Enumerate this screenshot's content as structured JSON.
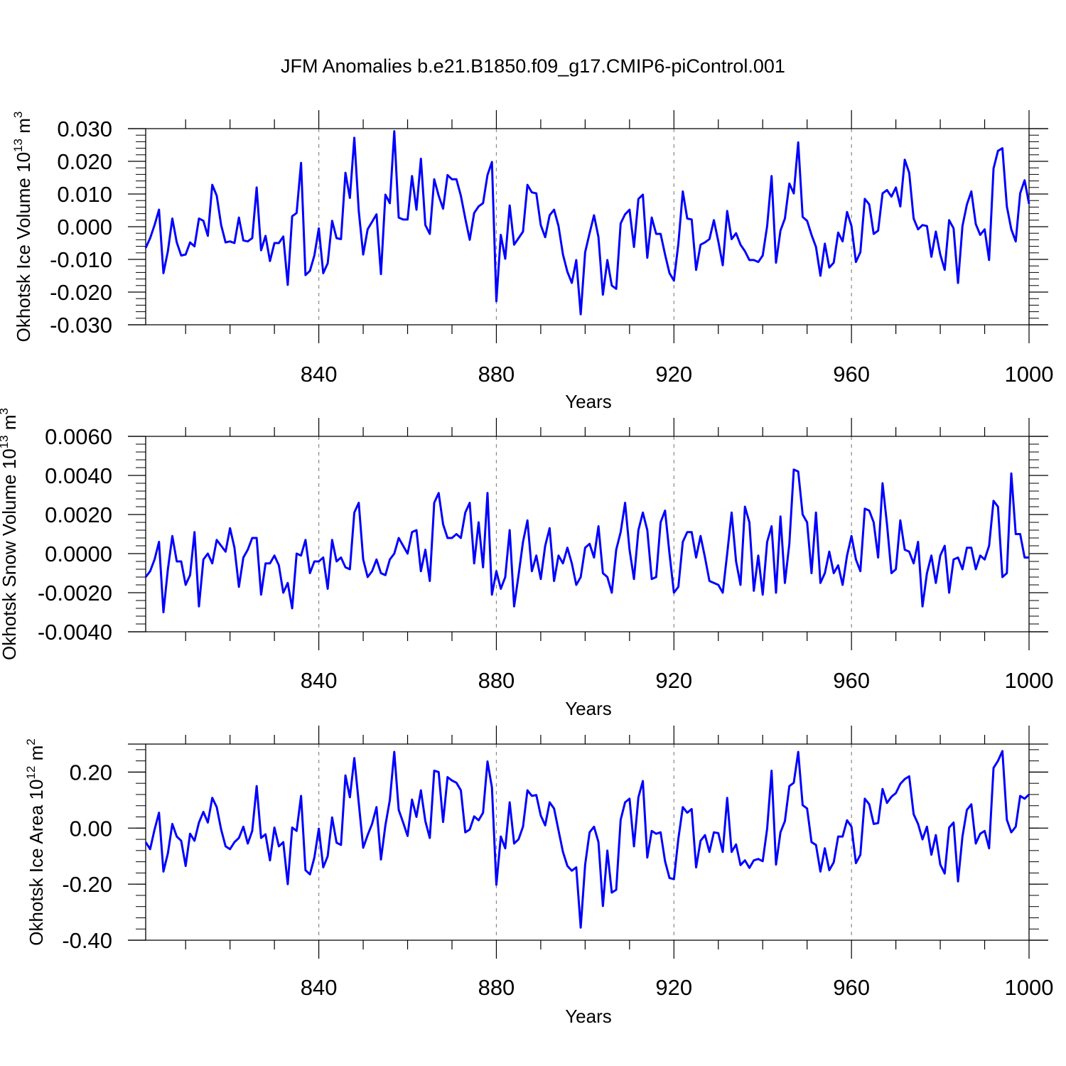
{
  "title": "JFM Anomalies b.e21.B1850.f09_g17.CMIP6-piControl.001",
  "series_color": "#0000ff",
  "chart_data": [
    {
      "type": "line",
      "title": "JFM Anomalies b.e21.B1850.f09_g17.CMIP6-piControl.001",
      "xlabel": "Years",
      "ylabel": "Okhotsk Ice Volume 10",
      "ylabel_sup": "13",
      "ylabel_unit": "m",
      "ylabel_unit_sup": "3",
      "xlim": [
        801,
        1000
      ],
      "ylim": [
        -0.03,
        0.03
      ],
      "xticks": [
        840,
        880,
        920,
        960,
        1000
      ],
      "yticks": [
        -0.03,
        -0.02,
        -0.01,
        0.0,
        0.01,
        0.02,
        0.03
      ],
      "ytick_labels": [
        "-0.030",
        "-0.020",
        "-0.010",
        "0.000",
        "0.010",
        "0.020",
        "0.030"
      ],
      "x_start": 801,
      "values": [
        -0.0065,
        -0.0035,
        0.0005,
        0.0052,
        -0.0142,
        -0.0075,
        0.0025,
        -0.0048,
        -0.0088,
        -0.0085,
        -0.0048,
        -0.006,
        0.0025,
        0.0018,
        -0.0028,
        0.0128,
        0.0095,
        0.0005,
        -0.0048,
        -0.0045,
        -0.005,
        0.0028,
        -0.0042,
        -0.0045,
        -0.0035,
        0.012,
        -0.0072,
        -0.0028,
        -0.0105,
        -0.005,
        -0.005,
        -0.003,
        -0.0178,
        0.0032,
        0.0042,
        0.0195,
        -0.0148,
        -0.0135,
        -0.0088,
        -0.0005,
        -0.0142,
        -0.0112,
        0.0018,
        -0.0035,
        -0.0038,
        0.0165,
        0.0088,
        0.0272,
        0.0048,
        -0.0085,
        -0.0008,
        0.0015,
        0.0038,
        -0.0145,
        0.0098,
        0.0072,
        0.0292,
        0.0028,
        0.0022,
        0.0022,
        0.0155,
        0.0052,
        0.0208,
        0.0005,
        -0.0022,
        0.0145,
        0.0095,
        0.0055,
        0.0158,
        0.0145,
        0.0145,
        0.0095,
        0.0025,
        -0.004,
        0.0042,
        0.0062,
        0.0072,
        0.0158,
        0.0198,
        -0.0228,
        -0.0025,
        -0.0098,
        0.0065,
        -0.0055,
        -0.0035,
        -0.0015,
        0.0128,
        0.0105,
        0.0102,
        0.0005,
        -0.0032,
        0.0035,
        0.0052,
        0.0002,
        -0.0085,
        -0.0138,
        -0.0172,
        -0.0102,
        -0.0268,
        -0.0078,
        -0.002,
        0.0035,
        -0.0032,
        -0.0208,
        -0.0102,
        -0.018,
        -0.019,
        0.001,
        0.0038,
        0.0052,
        -0.0062,
        0.0085,
        0.0098,
        -0.0095,
        0.0028,
        -0.0022,
        -0.0022,
        -0.0085,
        -0.0142,
        -0.0165,
        -0.0052,
        0.0108,
        0.0025,
        0.0022,
        -0.0132,
        -0.0055,
        -0.0048,
        -0.0038,
        0.002,
        -0.0045,
        -0.0118,
        0.0048,
        -0.0038,
        -0.002,
        -0.0055,
        -0.0075,
        -0.0102,
        -0.0102,
        -0.0108,
        -0.0088,
        0.0002,
        0.0155,
        -0.011,
        -0.0012,
        0.0025,
        0.0132,
        0.0102,
        0.0258,
        0.003,
        0.0018,
        -0.0025,
        -0.0062,
        -0.015,
        -0.0052,
        -0.0125,
        -0.011,
        -0.0018,
        -0.0045,
        0.0045,
        0.0002,
        -0.0108,
        -0.0078,
        0.0085,
        0.0068,
        -0.0022,
        -0.0012,
        0.0102,
        0.0112,
        0.0092,
        0.012,
        0.0062,
        0.0205,
        0.0165,
        0.0025,
        -0.0008,
        0.0005,
        0.0002,
        -0.0092,
        -0.0015,
        -0.0085,
        -0.0132,
        0.002,
        -0.0005,
        -0.0172,
        0.0002,
        0.0068,
        0.0108,
        0.0008,
        -0.0025,
        -0.0008,
        -0.0102,
        0.0178,
        0.0232,
        0.024,
        0.0062,
        -0.0008,
        -0.0045,
        0.0102,
        0.0142,
        0.007
      ]
    },
    {
      "type": "line",
      "xlabel": "Years",
      "ylabel": "Okhotsk Snow Volume 10",
      "ylabel_sup": "13",
      "ylabel_unit": "m",
      "ylabel_unit_sup": "3",
      "xlim": [
        801,
        1000
      ],
      "ylim": [
        -0.004,
        0.006
      ],
      "xticks": [
        840,
        880,
        920,
        960,
        1000
      ],
      "yticks": [
        -0.004,
        -0.002,
        0.0,
        0.002,
        0.004,
        0.006
      ],
      "ytick_labels": [
        "-0.0040",
        "-0.0020",
        "0.0000",
        "0.0020",
        "0.0040",
        "0.0060"
      ],
      "x_start": 801,
      "values": [
        -0.0012,
        -0.0009,
        -0.0003,
        0.0006,
        -0.003,
        -0.0008,
        0.0009,
        -0.0004,
        -0.0004,
        -0.0016,
        -0.0011,
        0.0011,
        -0.0027,
        -0.0003,
        0.0,
        -0.0005,
        0.0007,
        0.0004,
        0.0001,
        0.0013,
        0.0003,
        -0.0017,
        -0.0002,
        0.0002,
        0.0008,
        0.0008,
        -0.0021,
        -0.0005,
        -0.0005,
        -0.0001,
        -0.0006,
        -0.002,
        -0.0015,
        -0.0028,
        0.0,
        -0.0001,
        0.0007,
        -0.001,
        -0.0004,
        -0.0004,
        -0.0002,
        -0.0018,
        0.0007,
        -0.0004,
        -0.0002,
        -0.0007,
        -0.0008,
        0.0021,
        0.0026,
        -0.0003,
        -0.0012,
        -0.0009,
        -0.0003,
        -0.001,
        -0.0011,
        -0.0003,
        0.0,
        0.0008,
        0.0004,
        0.0,
        0.0011,
        0.0012,
        -0.0009,
        0.0002,
        -0.0014,
        0.0026,
        0.0031,
        0.0015,
        0.0008,
        0.0008,
        0.001,
        0.0008,
        0.0021,
        0.0026,
        -0.0005,
        0.0016,
        -0.0007,
        0.0031,
        -0.0021,
        -0.0009,
        -0.0018,
        -0.0012,
        0.0012,
        -0.0027,
        -0.0011,
        0.0006,
        0.0017,
        -0.0009,
        -0.0001,
        -0.0013,
        0.0004,
        0.0013,
        -0.0014,
        -0.0001,
        -0.0005,
        0.0003,
        -0.0005,
        -0.0016,
        -0.0012,
        0.0003,
        0.0005,
        -0.0002,
        0.0014,
        -0.001,
        -0.0012,
        -0.002,
        0.0002,
        0.0011,
        0.0026,
        0.0002,
        -0.0013,
        0.0012,
        0.0021,
        0.0012,
        -0.0013,
        -0.0012,
        0.0016,
        0.0022,
        0.0,
        -0.002,
        -0.0017,
        0.0006,
        0.0011,
        0.0011,
        -0.0002,
        0.0009,
        -0.0002,
        -0.0014,
        -0.0015,
        -0.0016,
        -0.002,
        0.0,
        0.0021,
        -0.0004,
        -0.0016,
        0.0024,
        0.0016,
        -0.0019,
        -0.0001,
        -0.0021,
        0.0006,
        0.0014,
        -0.002,
        0.0019,
        -0.0015,
        0.0005,
        0.0043,
        0.0042,
        0.002,
        0.0016,
        -0.001,
        0.0021,
        -0.0015,
        -0.001,
        0.0001,
        -0.001,
        -0.0006,
        -0.0016,
        -0.0001,
        0.0009,
        -0.0003,
        -0.0009,
        0.0023,
        0.0022,
        0.0016,
        -0.0002,
        0.0036,
        0.0015,
        -0.001,
        -0.0008,
        0.0017,
        0.0002,
        0.0001,
        -0.0005,
        0.0006,
        -0.0027,
        -0.001,
        -0.0001,
        -0.0015,
        -0.0001,
        0.0004,
        -0.002,
        -0.0003,
        -0.0002,
        -0.0008,
        0.0003,
        0.0003,
        -0.0008,
        -0.0001,
        -0.0003,
        0.0004,
        0.0027,
        0.0024,
        -0.0012,
        -0.001,
        0.0041,
        0.001,
        0.001,
        -0.0002,
        -0.0002
      ]
    },
    {
      "type": "line",
      "xlabel": "Years",
      "ylabel": "Okhotsk Ice Area 10",
      "ylabel_sup": "12",
      "ylabel_unit": "m",
      "ylabel_unit_sup": "2",
      "xlim": [
        801,
        1000
      ],
      "ylim": [
        -0.4,
        0.3
      ],
      "xticks": [
        840,
        880,
        920,
        960,
        1000
      ],
      "yticks": [
        -0.4,
        -0.2,
        0.0,
        0.2
      ],
      "ytick_labels": [
        "-0.40",
        "-0.20",
        "0.00",
        "0.20"
      ],
      "x_start": 801,
      "values": [
        -0.05,
        -0.075,
        -0.005,
        0.055,
        -0.155,
        -0.09,
        0.015,
        -0.03,
        -0.045,
        -0.135,
        -0.02,
        -0.045,
        0.02,
        0.058,
        0.02,
        0.108,
        0.075,
        -0.005,
        -0.065,
        -0.075,
        -0.05,
        -0.035,
        0.005,
        -0.055,
        -0.01,
        0.15,
        -0.035,
        -0.022,
        -0.115,
        0.002,
        -0.065,
        -0.05,
        -0.2,
        0.002,
        -0.01,
        0.115,
        -0.15,
        -0.165,
        -0.105,
        -0.002,
        -0.14,
        -0.1,
        0.038,
        -0.052,
        -0.06,
        0.188,
        0.11,
        0.25,
        0.09,
        -0.07,
        -0.025,
        0.015,
        0.075,
        -0.112,
        0.01,
        0.1,
        0.272,
        0.065,
        0.02,
        -0.028,
        0.102,
        0.04,
        0.135,
        0.025,
        -0.035,
        0.205,
        0.2,
        0.022,
        0.182,
        0.17,
        0.162,
        0.135,
        -0.015,
        -0.005,
        0.042,
        0.028,
        0.055,
        0.238,
        0.145,
        -0.202,
        -0.03,
        -0.072,
        0.092,
        -0.055,
        -0.04,
        0.005,
        0.135,
        0.115,
        0.118,
        0.045,
        0.01,
        0.092,
        0.07,
        -0.008,
        -0.085,
        -0.135,
        -0.152,
        -0.14,
        -0.355,
        -0.13,
        -0.015,
        0.005,
        -0.05,
        -0.278,
        -0.08,
        -0.23,
        -0.22,
        0.03,
        0.092,
        0.105,
        -0.065,
        0.11,
        0.168,
        -0.105,
        -0.01,
        -0.02,
        -0.015,
        -0.118,
        -0.178,
        -0.182,
        -0.038,
        0.075,
        0.055,
        0.068,
        -0.14,
        -0.045,
        -0.025,
        -0.085,
        -0.015,
        -0.018,
        -0.085,
        0.108,
        -0.085,
        -0.058,
        -0.132,
        -0.115,
        -0.142,
        -0.115,
        -0.11,
        -0.118,
        -0.002,
        0.205,
        -0.13,
        -0.015,
        0.025,
        0.15,
        0.162,
        0.272,
        0.082,
        0.07,
        -0.05,
        -0.06,
        -0.155,
        -0.072,
        -0.15,
        -0.122,
        -0.03,
        -0.03,
        0.028,
        0.005,
        -0.125,
        -0.095,
        0.105,
        0.085,
        0.015,
        0.018,
        0.14,
        0.09,
        0.112,
        0.125,
        0.158,
        0.175,
        0.185,
        0.05,
        0.015,
        -0.04,
        0.005,
        -0.095,
        -0.025,
        -0.13,
        -0.162,
        0.002,
        0.02,
        -0.19,
        -0.03,
        0.065,
        0.085,
        -0.055,
        -0.02,
        -0.01,
        -0.072,
        0.215,
        0.24,
        0.275,
        0.03,
        -0.015,
        0.005,
        0.115,
        0.105,
        0.12
      ]
    }
  ]
}
